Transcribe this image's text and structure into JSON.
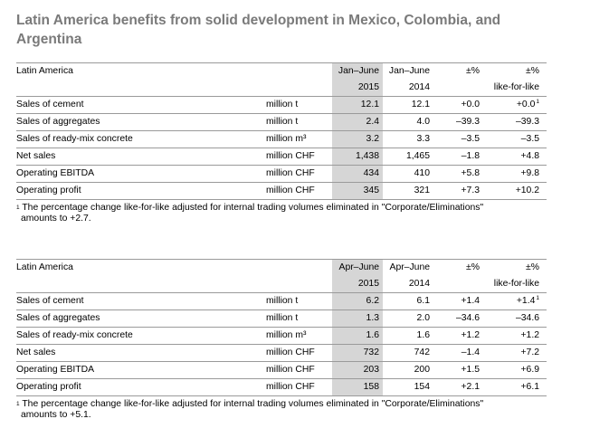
{
  "title": "Latin America benefits from solid development in Mexico, Colombia, and Argentina",
  "tables": [
    {
      "region": "Latin America",
      "current_period": "Jan–June",
      "current_year": "2015",
      "prior_period": "Jan–June",
      "prior_year": "2014",
      "change_header": "±%",
      "lfl_header_1": "±%",
      "lfl_header_2": "like-for-like",
      "rows": [
        {
          "label": "Sales of cement",
          "unit": "million t",
          "cur": "12.1",
          "prev": "12.1",
          "chg": "+0.0",
          "lfl": "+0.0",
          "lfl_sup": "1"
        },
        {
          "label": "Sales of aggregates",
          "unit": "million t",
          "cur": "2.4",
          "prev": "4.0",
          "chg": "–39.3",
          "lfl": "–39.3",
          "lfl_sup": ""
        },
        {
          "label": "Sales of ready-mix concrete",
          "unit": "million m³",
          "cur": "3.2",
          "prev": "3.3",
          "chg": "–3.5",
          "lfl": "–3.5",
          "lfl_sup": ""
        },
        {
          "label": "Net sales",
          "unit": "million CHF",
          "cur": "1,438",
          "prev": "1,465",
          "chg": "–1.8",
          "lfl": "+4.8",
          "lfl_sup": ""
        },
        {
          "label": "Operating EBITDA",
          "unit": "million CHF",
          "cur": "434",
          "prev": "410",
          "chg": "+5.8",
          "lfl": "+9.8",
          "lfl_sup": ""
        },
        {
          "label": "Operating profit",
          "unit": "million CHF",
          "cur": "345",
          "prev": "321",
          "chg": "+7.3",
          "lfl": "+10.2",
          "lfl_sup": ""
        }
      ],
      "footnote_mark": "1",
      "footnote_line1": "The percentage change like-for-like adjusted for internal trading volumes eliminated in \"Corporate/Eliminations\"",
      "footnote_line2": "amounts to +2.7."
    },
    {
      "region": "Latin America",
      "current_period": "Apr–June",
      "current_year": "2015",
      "prior_period": "Apr–June",
      "prior_year": "2014",
      "change_header": "±%",
      "lfl_header_1": "±%",
      "lfl_header_2": "like-for-like",
      "rows": [
        {
          "label": "Sales of cement",
          "unit": "million t",
          "cur": "6.2",
          "prev": "6.1",
          "chg": "+1.4",
          "lfl": "+1.4",
          "lfl_sup": "1"
        },
        {
          "label": "Sales of aggregates",
          "unit": "million t",
          "cur": "1.3",
          "prev": "2.0",
          "chg": "–34.6",
          "lfl": "–34.6",
          "lfl_sup": ""
        },
        {
          "label": "Sales of ready-mix concrete",
          "unit": "million m³",
          "cur": "1.6",
          "prev": "1.6",
          "chg": "+1.2",
          "lfl": "+1.2",
          "lfl_sup": ""
        },
        {
          "label": "Net sales",
          "unit": "million CHF",
          "cur": "732",
          "prev": "742",
          "chg": "–1.4",
          "lfl": "+7.2",
          "lfl_sup": ""
        },
        {
          "label": "Operating EBITDA",
          "unit": "million CHF",
          "cur": "203",
          "prev": "200",
          "chg": "+1.5",
          "lfl": "+6.9",
          "lfl_sup": ""
        },
        {
          "label": "Operating profit",
          "unit": "million CHF",
          "cur": "158",
          "prev": "154",
          "chg": "+2.1",
          "lfl": "+6.1",
          "lfl_sup": ""
        }
      ],
      "footnote_mark": "1",
      "footnote_line1": "The percentage change like-for-like adjusted for internal trading volumes eliminated in \"Corporate/Eliminations\"",
      "footnote_line2": "amounts to +5.1."
    }
  ]
}
